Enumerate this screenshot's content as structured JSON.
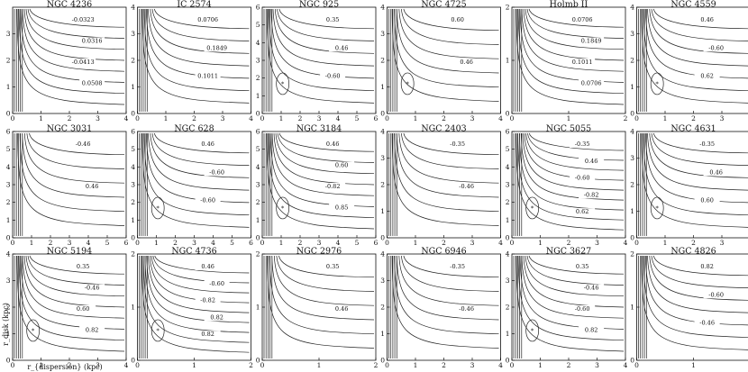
{
  "figure": {
    "y_axis_label": "r_disk (kpc)",
    "x_axis_label": "r_{dispersion} (kpc)"
  },
  "chart_data": [
    {
      "type": "contour",
      "title": "NGC 4236",
      "xlim": [
        0,
        4
      ],
      "ylim": [
        0,
        4
      ],
      "xticks": [
        "0",
        "1",
        "2",
        "3",
        "4"
      ],
      "yticks": [
        "0",
        "1",
        "2",
        "3"
      ],
      "contour_labels": [
        "-0.0323",
        "0.0316",
        "-0.0413",
        "0.0508"
      ],
      "minimum_marker": false
    },
    {
      "type": "contour",
      "title": "IC 2574",
      "xlim": [
        0,
        4
      ],
      "ylim": [
        0,
        4
      ],
      "xticks": [
        "0",
        "1",
        "2",
        "3",
        "4"
      ],
      "yticks": [
        "0",
        "1",
        "2",
        "3",
        "4"
      ],
      "contour_labels": [
        "0.0706",
        "0.1849",
        "0.1011"
      ],
      "minimum_marker": false
    },
    {
      "type": "contour",
      "title": "NGC 925",
      "xlim": [
        0,
        6
      ],
      "ylim": [
        0,
        6
      ],
      "xticks": [
        "0",
        "1",
        "2",
        "3",
        "4",
        "5",
        "6"
      ],
      "yticks": [
        "0",
        "1",
        "2",
        "3",
        "4",
        "5",
        "6"
      ],
      "contour_labels": [
        "0.35",
        "0.46",
        "-0.60"
      ],
      "minimum_marker": true
    },
    {
      "type": "contour",
      "title": "NGC 4725",
      "xlim": [
        0,
        4
      ],
      "ylim": [
        0,
        4
      ],
      "xticks": [
        "0",
        "1",
        "2",
        "3",
        "4"
      ],
      "yticks": [
        "0",
        "1",
        "2",
        "3",
        "4"
      ],
      "contour_labels": [
        "0.60",
        "0.46"
      ],
      "minimum_marker": true
    },
    {
      "type": "contour",
      "title": "Holmb II",
      "xlim": [
        0,
        2
      ],
      "ylim": [
        0,
        2
      ],
      "xticks": [
        "0",
        "1",
        "2"
      ],
      "yticks": [
        "0",
        "1",
        "2"
      ],
      "contour_labels": [
        "0.0706",
        "0.1849",
        "0.1011",
        "0.0706"
      ],
      "minimum_marker": false
    },
    {
      "type": "contour",
      "title": "NGC 4559",
      "xlim": [
        0,
        4
      ],
      "ylim": [
        0,
        4
      ],
      "xticks": [
        "0",
        "1",
        "2",
        "3",
        "4"
      ],
      "yticks": [
        "0",
        "1",
        "2",
        "3",
        "4"
      ],
      "contour_labels": [
        "0.46",
        "-0.60",
        "0.62"
      ],
      "minimum_marker": true
    },
    {
      "type": "contour",
      "title": "NGC 3031",
      "xlim": [
        0,
        6
      ],
      "ylim": [
        0,
        6
      ],
      "xticks": [
        "0",
        "1",
        "2",
        "3",
        "4",
        "5",
        "6"
      ],
      "yticks": [
        "0",
        "1",
        "2",
        "3",
        "4",
        "5",
        "6"
      ],
      "contour_labels": [
        "-0.46",
        "0.46"
      ],
      "minimum_marker": false
    },
    {
      "type": "contour",
      "title": "NGC 628",
      "xlim": [
        0,
        6
      ],
      "ylim": [
        0,
        6
      ],
      "xticks": [
        "0",
        "1",
        "2",
        "3",
        "4",
        "5",
        "6"
      ],
      "yticks": [
        "0",
        "1",
        "2",
        "3",
        "4",
        "5",
        "6"
      ],
      "contour_labels": [
        "0.46",
        "-0.60",
        "-0.60"
      ],
      "minimum_marker": true
    },
    {
      "type": "contour",
      "title": "NGC 3184",
      "xlim": [
        0,
        6
      ],
      "ylim": [
        0,
        6
      ],
      "xticks": [
        "0",
        "1",
        "2",
        "3",
        "4",
        "5",
        "6"
      ],
      "yticks": [
        "0",
        "1",
        "2",
        "3",
        "4",
        "5",
        "6"
      ],
      "contour_labels": [
        "0.46",
        "0.60",
        "-0.82",
        "0.85"
      ],
      "minimum_marker": true
    },
    {
      "type": "contour",
      "title": "NGC 2403",
      "xlim": [
        0,
        4
      ],
      "ylim": [
        0,
        4
      ],
      "xticks": [
        "0",
        "1",
        "2",
        "3",
        "4"
      ],
      "yticks": [
        "0",
        "1",
        "2",
        "3",
        "4"
      ],
      "contour_labels": [
        "-0.35",
        "-0.46"
      ],
      "minimum_marker": false
    },
    {
      "type": "contour",
      "title": "NGC 5055",
      "xlim": [
        0,
        4
      ],
      "ylim": [
        0,
        6
      ],
      "xticks": [
        "0",
        "1",
        "2",
        "3",
        "4"
      ],
      "yticks": [
        "0",
        "1",
        "2",
        "3",
        "4",
        "5",
        "6"
      ],
      "contour_labels": [
        "-0.35",
        "0.46",
        "-0.60",
        "-0.82",
        "0.62"
      ],
      "minimum_marker": true
    },
    {
      "type": "contour",
      "title": "NGC 4631",
      "xlim": [
        0,
        4
      ],
      "ylim": [
        0,
        4
      ],
      "xticks": [
        "0",
        "1",
        "2",
        "3",
        "4"
      ],
      "yticks": [
        "0",
        "1",
        "2",
        "3",
        "4"
      ],
      "contour_labels": [
        "-0.35",
        "0.46",
        "0.60"
      ],
      "minimum_marker": true
    },
    {
      "type": "contour",
      "title": "NGC 5194",
      "xlim": [
        0,
        4
      ],
      "ylim": [
        0,
        4
      ],
      "xticks": [
        "0",
        "1",
        "2",
        "3",
        "4"
      ],
      "yticks": [
        "0",
        "1",
        "2",
        "3",
        "4"
      ],
      "contour_labels": [
        "0.35",
        "-0.46",
        "0.60",
        "0.82"
      ],
      "minimum_marker": true
    },
    {
      "type": "contour",
      "title": "NGC 4736",
      "xlim": [
        0,
        2
      ],
      "ylim": [
        0,
        2
      ],
      "xticks": [
        "0",
        "1",
        "2"
      ],
      "yticks": [
        "0",
        "1",
        "2"
      ],
      "contour_labels": [
        "0.46",
        "-0.60",
        "-0.82",
        "0.82",
        "0.82"
      ],
      "minimum_marker": true
    },
    {
      "type": "contour",
      "title": "NGC 2976",
      "xlim": [
        0,
        2
      ],
      "ylim": [
        0,
        2
      ],
      "xticks": [
        "0",
        "1",
        "2"
      ],
      "yticks": [
        "0",
        "1",
        "2"
      ],
      "contour_labels": [
        "0.35",
        "0.46"
      ],
      "minimum_marker": false
    },
    {
      "type": "contour",
      "title": "NGC 6946",
      "xlim": [
        0,
        4
      ],
      "ylim": [
        0,
        4
      ],
      "xticks": [
        "0",
        "1",
        "2",
        "3",
        "4"
      ],
      "yticks": [
        "0",
        "1",
        "2",
        "3",
        "4"
      ],
      "contour_labels": [
        "-0.35",
        "-0.46"
      ],
      "minimum_marker": false
    },
    {
      "type": "contour",
      "title": "NGC 3627",
      "xlim": [
        0,
        4
      ],
      "ylim": [
        0,
        4
      ],
      "xticks": [
        "0",
        "1",
        "2",
        "3",
        "4"
      ],
      "yticks": [
        "0",
        "1",
        "2",
        "3",
        "4"
      ],
      "contour_labels": [
        "0.35",
        "-0.46",
        "-0.60",
        "0.82"
      ],
      "minimum_marker": true
    },
    {
      "type": "contour",
      "title": "NGC 4826",
      "xlim": [
        0,
        2
      ],
      "ylim": [
        0,
        2
      ],
      "xticks": [
        "0",
        "1",
        "2"
      ],
      "yticks": [
        "0",
        "1",
        "2"
      ],
      "contour_labels": [
        "0.82",
        "-0.60",
        "-0.46"
      ],
      "minimum_marker": false
    }
  ]
}
